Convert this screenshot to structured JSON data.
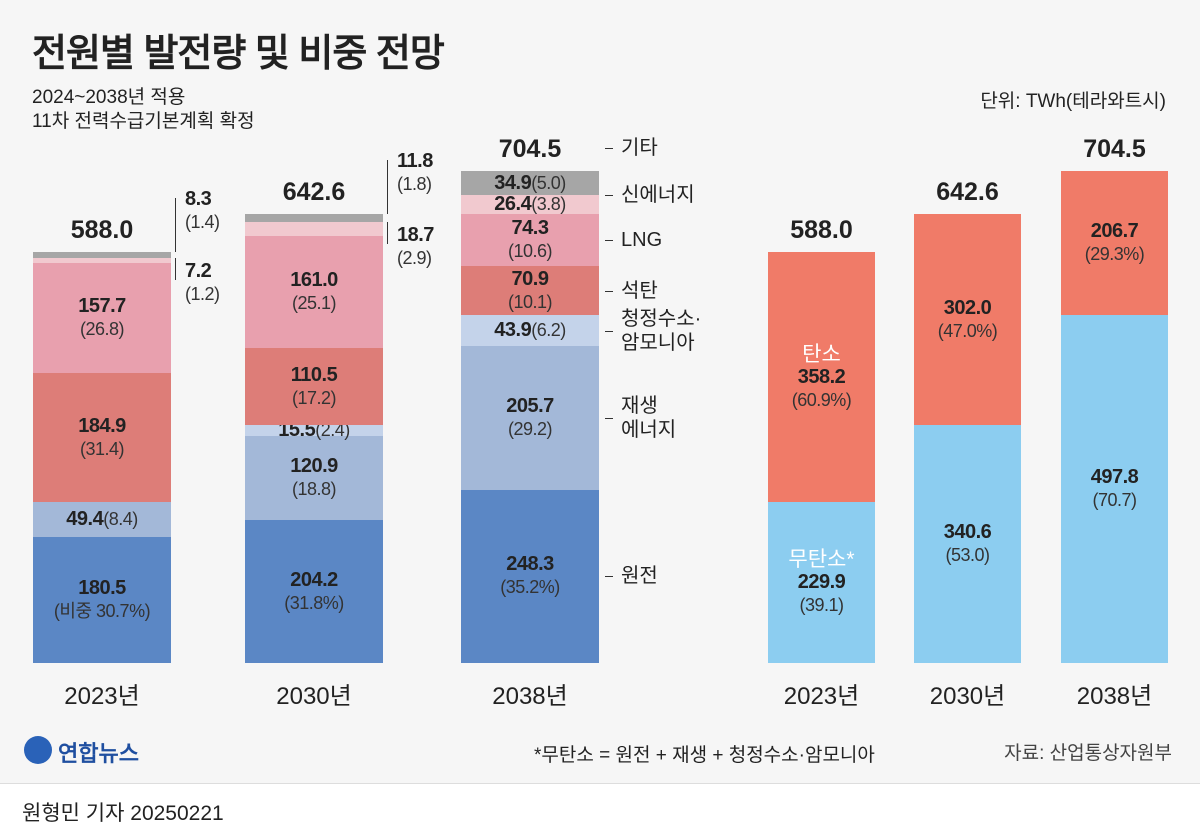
{
  "chart_data": [
    {
      "type": "stacked_bar",
      "title": "전원별 발전량 및 비중 전망",
      "subtitle": "2024~2038년 적용\n11차 전력수급기본계획 확정",
      "legend": "right",
      "categories": [
        "2023년",
        "2030년",
        "2038년"
      ],
      "totals": [
        588.0,
        642.6,
        704.5
      ],
      "total_labels": [
        "588.0",
        "642.6",
        "704.5"
      ],
      "series": [
        {
          "name": "원전",
          "color": "#5b87c5",
          "values": [
            180.5,
            204.2,
            248.3
          ],
          "value_labels": [
            "180.5",
            "204.2",
            "248.3"
          ],
          "share_labels": [
            "(비중 30.7%)",
            "(31.8%)",
            "(35.2%)"
          ]
        },
        {
          "name": "재생\n에너지",
          "color": "#a3b8d8",
          "values": [
            49.4,
            120.9,
            205.7
          ],
          "value_labels": [
            "49.4",
            "120.9",
            "205.7"
          ],
          "share_labels": [
            "(8.4)",
            "(18.8)",
            "(29.2)"
          ]
        },
        {
          "name": "청정수소·\n암모니아",
          "color": "#c4d3ea",
          "values": [
            null,
            15.5,
            43.9
          ],
          "value_labels": [
            null,
            "15.5",
            "43.9"
          ],
          "share_labels": [
            null,
            "(2.4)",
            "(6.2)"
          ]
        },
        {
          "name": "석탄",
          "color": "#dd7d78",
          "values": [
            184.9,
            110.5,
            70.9
          ],
          "value_labels": [
            "184.9",
            "110.5",
            "70.9"
          ],
          "share_labels": [
            "(31.4)",
            "(17.2)",
            "(10.1)"
          ]
        },
        {
          "name": "LNG",
          "color": "#e8a0ae",
          "values": [
            157.7,
            161.0,
            74.3
          ],
          "value_labels": [
            "157.7",
            "161.0",
            "74.3"
          ],
          "share_labels": [
            "(26.8)",
            "(25.1)",
            "(10.6)"
          ]
        },
        {
          "name": "신에너지",
          "color": "#f1c9cf",
          "values": [
            7.2,
            18.7,
            26.4
          ],
          "value_labels": [
            "7.2",
            "18.7",
            "26.4"
          ],
          "share_labels": [
            "(1.2)",
            "(2.9)",
            "(3.8)"
          ]
        },
        {
          "name": "기타",
          "color": "#a6a6a6",
          "values": [
            8.3,
            11.8,
            34.9
          ],
          "value_labels": [
            "8.3",
            "11.8",
            "34.9"
          ],
          "share_labels": [
            "(1.4)",
            "(1.8)",
            "(5.0)"
          ]
        }
      ]
    },
    {
      "type": "stacked_bar",
      "unit": "단위: TWh(테라와트시)",
      "legend": "in-bar",
      "categories": [
        "2023년",
        "2030년",
        "2038년"
      ],
      "totals": [
        588.0,
        642.6,
        704.5
      ],
      "total_labels": [
        "588.0",
        "642.6",
        "704.5"
      ],
      "series": [
        {
          "name": "무탄소*",
          "color": "#8ccdf0",
          "values": [
            229.9,
            340.6,
            497.8
          ],
          "value_labels": [
            "229.9",
            "340.6",
            "497.8"
          ],
          "share_labels": [
            "(39.1)",
            "(53.0)",
            "(70.7)"
          ]
        },
        {
          "name": "탄소",
          "color": "#f07b68",
          "values": [
            358.2,
            302.0,
            206.7
          ],
          "value_labels": [
            "358.2",
            "302.0",
            "206.7"
          ],
          "share_labels": [
            "(60.9%)",
            "(47.0%)",
            "(29.3%)"
          ]
        }
      ]
    }
  ],
  "footer": {
    "logo": "연합뉴스",
    "note": "*무탄소 = 원전 + 재생 + 청정수소·암모니아",
    "source": "자료: 산업통상자원부",
    "byline": "원형민 기자  20250221"
  }
}
